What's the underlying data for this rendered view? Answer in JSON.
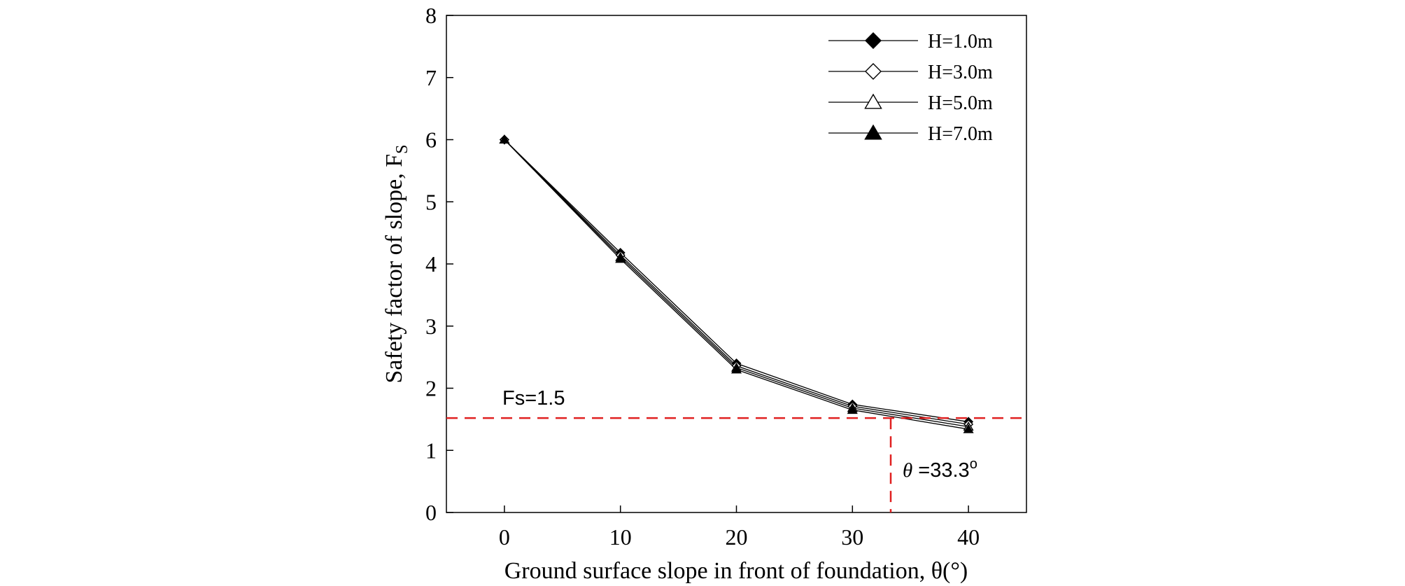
{
  "chart_data": {
    "type": "line",
    "xlabel": "Ground surface slope in front of foundation, θ(°)",
    "ylabel": "Safety factor of slope, F",
    "ylabel_sub": "S",
    "x": [
      0,
      10,
      20,
      30,
      40
    ],
    "xlim": [
      -5,
      45
    ],
    "ylim": [
      0,
      8
    ],
    "x_ticks": [
      0,
      10,
      20,
      30,
      40
    ],
    "y_ticks": [
      0,
      1,
      2,
      3,
      4,
      5,
      6,
      7,
      8
    ],
    "grid": false,
    "legend_position": "top-right",
    "series": [
      {
        "name": "H=1.0m",
        "marker": "diamond-filled",
        "values": [
          6.0,
          4.18,
          2.4,
          1.74,
          1.46
        ]
      },
      {
        "name": "H=3.0m",
        "marker": "diamond-open",
        "values": [
          6.0,
          4.14,
          2.36,
          1.71,
          1.42
        ]
      },
      {
        "name": "H=5.0m",
        "marker": "triangle-open",
        "values": [
          6.0,
          4.11,
          2.33,
          1.68,
          1.38
        ]
      },
      {
        "name": "H=7.0m",
        "marker": "triangle-filled",
        "values": [
          6.0,
          4.08,
          2.3,
          1.65,
          1.34
        ]
      }
    ],
    "reference_lines": {
      "horizontal": {
        "value": 1.52,
        "label": "Fs=1.5",
        "color": "#e02020"
      },
      "vertical": {
        "value": 33.3,
        "label_symbol": "θ",
        "label_value": " =33.3",
        "label_sup": "o",
        "color": "#e02020"
      }
    }
  }
}
